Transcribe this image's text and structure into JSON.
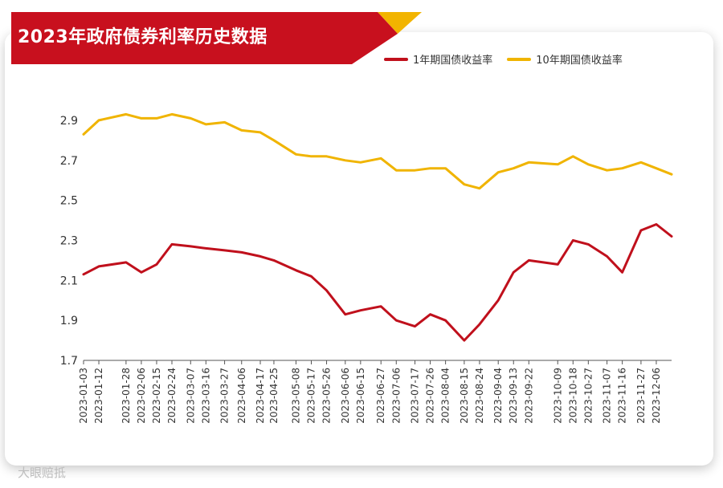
{
  "title": "2023年政府债券利率历史数据",
  "watermark": "大眼赔抵",
  "colors": {
    "banner": "#c8101e",
    "banner_accent": "#f2b400",
    "series1": "#c0101c",
    "series2": "#f0b400"
  },
  "chart_data": {
    "type": "line",
    "title": "2023年政府债券利率历史数据",
    "xlabel": "",
    "ylabel": "",
    "ylim": [
      1.7,
      3.0
    ],
    "yticks": [
      1.7,
      1.9,
      2.1,
      2.3,
      2.5,
      2.7,
      2.9
    ],
    "grid": false,
    "legend_position": "top-right",
    "x_tick_labels": [
      "2023-01-03",
      "2023-01-12",
      "2023-01-28",
      "2023-02-06",
      "2023-02-15",
      "2023-02-24",
      "2023-03-07",
      "2023-03-16",
      "2023-03-27",
      "2023-04-06",
      "2023-04-17",
      "2023-04-25",
      "2023-05-08",
      "2023-05-17",
      "2023-05-26",
      "2023-06-06",
      "2023-06-15",
      "2023-06-27",
      "2023-07-06",
      "2023-07-17",
      "2023-07-26",
      "2023-08-04",
      "2023-08-15",
      "2023-08-24",
      "2023-09-04",
      "2023-09-13",
      "2023-09-22",
      "2023-10-09",
      "2023-10-18",
      "2023-10-27",
      "2023-11-07",
      "2023-11-16",
      "2023-11-27",
      "2023-12-06"
    ],
    "series": [
      {
        "name": "1年期国债收益率",
        "color": "#c0101c",
        "x": [
          "2023-01-03",
          "2023-01-12",
          "2023-01-28",
          "2023-02-06",
          "2023-02-15",
          "2023-02-24",
          "2023-03-07",
          "2023-03-16",
          "2023-03-27",
          "2023-04-06",
          "2023-04-17",
          "2023-04-25",
          "2023-05-08",
          "2023-05-17",
          "2023-05-26",
          "2023-06-06",
          "2023-06-15",
          "2023-06-27",
          "2023-07-06",
          "2023-07-17",
          "2023-07-26",
          "2023-08-04",
          "2023-08-15",
          "2023-08-24",
          "2023-09-04",
          "2023-09-13",
          "2023-09-22",
          "2023-10-09",
          "2023-10-18",
          "2023-10-27",
          "2023-11-07",
          "2023-11-16",
          "2023-11-27",
          "2023-12-06",
          "2023-12-15"
        ],
        "values": [
          2.13,
          2.17,
          2.19,
          2.14,
          2.18,
          2.28,
          2.27,
          2.26,
          2.25,
          2.24,
          2.22,
          2.2,
          2.15,
          2.12,
          2.05,
          1.93,
          1.95,
          1.97,
          1.9,
          1.87,
          1.93,
          1.9,
          1.8,
          1.88,
          2.0,
          2.14,
          2.2,
          2.18,
          2.3,
          2.28,
          2.22,
          2.14,
          2.35,
          2.38,
          2.32
        ]
      },
      {
        "name": "10年期国债收益率",
        "color": "#f0b400",
        "x": [
          "2023-01-03",
          "2023-01-12",
          "2023-01-28",
          "2023-02-06",
          "2023-02-15",
          "2023-02-24",
          "2023-03-07",
          "2023-03-16",
          "2023-03-27",
          "2023-04-06",
          "2023-04-17",
          "2023-04-25",
          "2023-05-08",
          "2023-05-17",
          "2023-05-26",
          "2023-06-06",
          "2023-06-15",
          "2023-06-27",
          "2023-07-06",
          "2023-07-17",
          "2023-07-26",
          "2023-08-04",
          "2023-08-15",
          "2023-08-24",
          "2023-09-04",
          "2023-09-13",
          "2023-09-22",
          "2023-10-09",
          "2023-10-18",
          "2023-10-27",
          "2023-11-07",
          "2023-11-16",
          "2023-11-27",
          "2023-12-06",
          "2023-12-15"
        ],
        "values": [
          2.83,
          2.9,
          2.93,
          2.91,
          2.91,
          2.93,
          2.91,
          2.88,
          2.89,
          2.85,
          2.84,
          2.8,
          2.73,
          2.72,
          2.72,
          2.7,
          2.69,
          2.71,
          2.65,
          2.65,
          2.66,
          2.66,
          2.58,
          2.56,
          2.64,
          2.66,
          2.69,
          2.68,
          2.72,
          2.68,
          2.65,
          2.66,
          2.69,
          2.66,
          2.63
        ]
      }
    ]
  }
}
